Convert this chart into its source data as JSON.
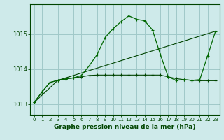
{
  "title": "Graphe pression niveau de la mer (hPa)",
  "bg_color": "#ceeaea",
  "grid_color": "#a0c8c8",
  "line_color_dark": "#004400",
  "line_color_mid": "#006600",
  "xlim": [
    -0.5,
    23.5
  ],
  "ylim": [
    1012.7,
    1015.85
  ],
  "yticks": [
    1013,
    1014,
    1015
  ],
  "xticks": [
    0,
    1,
    2,
    3,
    4,
    5,
    6,
    7,
    8,
    9,
    10,
    11,
    12,
    13,
    14,
    15,
    16,
    17,
    18,
    19,
    20,
    21,
    22,
    23
  ],
  "series1_x": [
    0,
    1,
    2,
    3,
    4,
    5,
    6,
    7,
    8,
    9,
    10,
    11,
    12,
    13,
    14,
    15,
    16,
    17,
    18,
    19,
    20,
    21,
    22,
    23
  ],
  "series1_y": [
    1013.05,
    1013.35,
    1013.62,
    1013.68,
    1013.72,
    1013.75,
    1013.78,
    1013.82,
    1013.83,
    1013.83,
    1013.83,
    1013.83,
    1013.83,
    1013.83,
    1013.83,
    1013.83,
    1013.83,
    1013.78,
    1013.73,
    1013.7,
    1013.68,
    1013.67,
    1013.67,
    1013.67
  ],
  "series2_x": [
    0,
    1,
    2,
    3,
    4,
    5,
    6,
    7,
    8,
    9,
    10,
    11,
    12,
    13,
    14,
    15,
    16,
    17,
    18,
    19,
    20,
    21,
    22,
    23
  ],
  "series2_y": [
    1013.05,
    1013.35,
    1013.62,
    1013.68,
    1013.72,
    1013.75,
    1013.82,
    1014.1,
    1014.42,
    1014.9,
    1015.15,
    1015.35,
    1015.52,
    1015.42,
    1015.38,
    1015.12,
    1014.42,
    1013.78,
    1013.68,
    1013.7,
    1013.68,
    1013.7,
    1014.38,
    1015.08
  ],
  "series3_x": [
    0,
    3,
    23
  ],
  "series3_y": [
    1013.05,
    1013.68,
    1015.08
  ]
}
